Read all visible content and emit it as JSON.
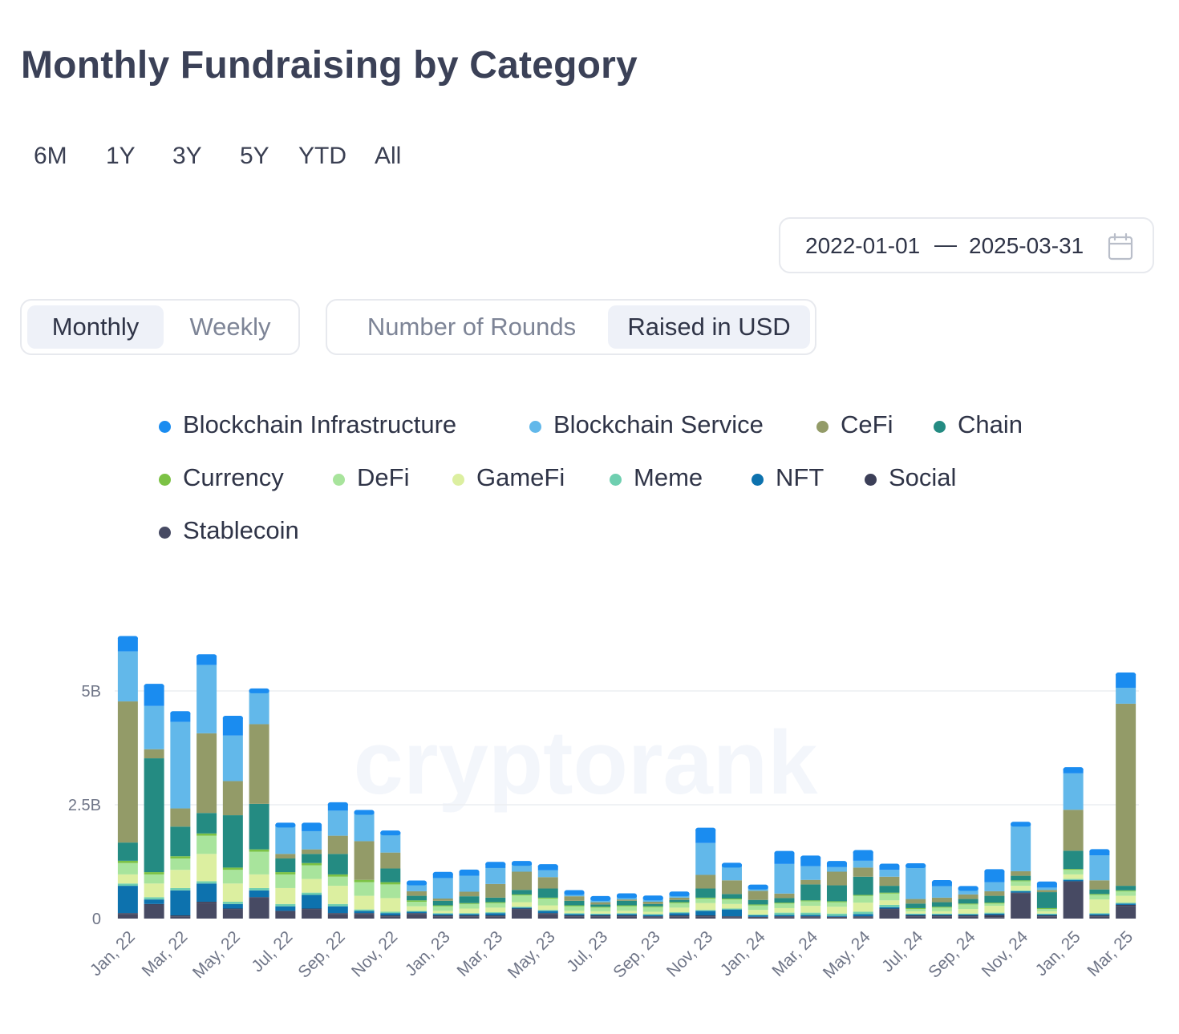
{
  "title": "Monthly Fundraising by Category",
  "ranges": [
    "6M",
    "1Y",
    "3Y",
    "5Y",
    "YTD",
    "All"
  ],
  "date_range": {
    "start": "2022-01-01",
    "separator": "—",
    "end": "2025-03-31"
  },
  "interval_toggle": {
    "options": [
      "Monthly",
      "Weekly"
    ],
    "selected": "Monthly"
  },
  "metric_toggle": {
    "options": [
      "Number of Rounds",
      "Raised in USD"
    ],
    "selected": "Raised in USD"
  },
  "icons": {
    "date_picker": "calendar-icon"
  },
  "watermark": "cryptorank",
  "colors": {
    "Blockchain Infrastructure": "#1a8cf0",
    "Blockchain Service": "#62b8ea",
    "CeFi": "#939b68",
    "Chain": "#248b82",
    "Currency": "#7cc245",
    "DeFi": "#a8e49c",
    "GameFi": "#dcefa0",
    "Meme": "#6fcfb0",
    "NFT": "#0d72ae",
    "Social": "#3c3f58",
    "Stablecoin": "#474a63"
  },
  "chart_data": {
    "type": "bar",
    "stacked": true,
    "title": "",
    "xlabel": "",
    "ylabel": "",
    "ylim": [
      0,
      6.2
    ],
    "y_ticks": [
      {
        "value": 0,
        "label": "0"
      },
      {
        "value": 2.5,
        "label": "2.5B"
      },
      {
        "value": 5,
        "label": "5B"
      }
    ],
    "grid": true,
    "legend_position": "top",
    "categories": [
      "Jan, 22",
      "Feb, 22",
      "Mar, 22",
      "Apr, 22",
      "May, 22",
      "Jun, 22",
      "Jul, 22",
      "Aug, 22",
      "Sep, 22",
      "Oct, 22",
      "Nov, 22",
      "Dec, 22",
      "Jan, 23",
      "Feb, 23",
      "Mar, 23",
      "Apr, 23",
      "May, 23",
      "Jun, 23",
      "Jul, 23",
      "Aug, 23",
      "Sep, 23",
      "Oct, 23",
      "Nov, 23",
      "Dec, 23",
      "Jan, 24",
      "Feb, 24",
      "Mar, 24",
      "Apr, 24",
      "May, 24",
      "Jun, 24",
      "Jul, 24",
      "Aug, 24",
      "Sep, 24",
      "Oct, 24",
      "Nov, 24",
      "Dec, 24",
      "Jan, 25",
      "Feb, 25",
      "Mar, 25"
    ],
    "x_tick_labels": [
      "Jan, 22",
      "Mar, 22",
      "May, 22",
      "Jul, 22",
      "Sep, 22",
      "Nov, 22",
      "Jan, 23",
      "Mar, 23",
      "May, 23",
      "Jul, 23",
      "Sep, 23",
      "Nov, 23",
      "Jan, 24",
      "Mar, 24",
      "May, 24",
      "Jul, 24",
      "Sep, 24",
      "Nov, 24",
      "Jan, 25",
      "Mar, 25"
    ],
    "units": "USD billions",
    "series": [
      {
        "name": "Stablecoin",
        "values": [
          0.1,
          0.3,
          0.05,
          0.35,
          0.2,
          0.45,
          0.15,
          0.2,
          0.1,
          0.1,
          0.05,
          0.1,
          0.05,
          0.05,
          0.05,
          0.2,
          0.1,
          0.05,
          0.05,
          0.05,
          0.03,
          0.05,
          0.05,
          0.03,
          0.02,
          0.03,
          0.03,
          0.02,
          0.03,
          0.2,
          0.05,
          0.05,
          0.05,
          0.03,
          0.55,
          0.05,
          0.8,
          0.05,
          0.28
        ]
      },
      {
        "name": "Social",
        "values": [
          0.02,
          0.02,
          0.02,
          0.02,
          0.02,
          0.02,
          0.02,
          0.02,
          0.02,
          0.02,
          0.02,
          0.02,
          0.02,
          0.02,
          0.02,
          0.02,
          0.02,
          0.02,
          0.02,
          0.02,
          0.02,
          0.02,
          0.02,
          0.02,
          0.02,
          0.02,
          0.02,
          0.02,
          0.02,
          0.02,
          0.02,
          0.02,
          0.02,
          0.05,
          0.02,
          0.02,
          0.02,
          0.02,
          0.02
        ]
      },
      {
        "name": "NFT",
        "values": [
          0.6,
          0.1,
          0.55,
          0.4,
          0.1,
          0.15,
          0.1,
          0.3,
          0.15,
          0.05,
          0.05,
          0.03,
          0.03,
          0.03,
          0.05,
          0.02,
          0.05,
          0.03,
          0.02,
          0.03,
          0.03,
          0.05,
          0.1,
          0.15,
          0.03,
          0.03,
          0.03,
          0.02,
          0.05,
          0.03,
          0.02,
          0.02,
          0.02,
          0.03,
          0.03,
          0.02,
          0.03,
          0.03,
          0.03
        ]
      },
      {
        "name": "Meme",
        "values": [
          0.05,
          0.05,
          0.05,
          0.05,
          0.05,
          0.05,
          0.05,
          0.05,
          0.05,
          0.03,
          0.03,
          0.02,
          0.02,
          0.02,
          0.02,
          0.02,
          0.02,
          0.02,
          0.02,
          0.02,
          0.02,
          0.02,
          0.02,
          0.02,
          0.02,
          0.05,
          0.05,
          0.05,
          0.05,
          0.05,
          0.02,
          0.02,
          0.02,
          0.02,
          0.02,
          0.02,
          0.02,
          0.02,
          0.02
        ]
      },
      {
        "name": "GameFi",
        "values": [
          0.2,
          0.3,
          0.4,
          0.6,
          0.4,
          0.3,
          0.35,
          0.3,
          0.4,
          0.3,
          0.3,
          0.1,
          0.05,
          0.1,
          0.1,
          0.1,
          0.1,
          0.05,
          0.05,
          0.05,
          0.05,
          0.1,
          0.15,
          0.1,
          0.1,
          0.1,
          0.15,
          0.15,
          0.2,
          0.1,
          0.05,
          0.05,
          0.1,
          0.15,
          0.1,
          0.05,
          0.1,
          0.3,
          0.15
        ]
      },
      {
        "name": "DeFi",
        "values": [
          0.25,
          0.2,
          0.25,
          0.4,
          0.3,
          0.5,
          0.3,
          0.3,
          0.2,
          0.3,
          0.3,
          0.1,
          0.1,
          0.1,
          0.1,
          0.15,
          0.15,
          0.1,
          0.08,
          0.1,
          0.1,
          0.1,
          0.1,
          0.1,
          0.1,
          0.1,
          0.1,
          0.1,
          0.15,
          0.15,
          0.05,
          0.08,
          0.1,
          0.05,
          0.1,
          0.05,
          0.1,
          0.1,
          0.1
        ]
      },
      {
        "name": "Currency",
        "values": [
          0.05,
          0.05,
          0.05,
          0.05,
          0.05,
          0.05,
          0.05,
          0.05,
          0.05,
          0.05,
          0.05,
          0.03,
          0.02,
          0.02,
          0.02,
          0.02,
          0.02,
          0.02,
          0.02,
          0.02,
          0.02,
          0.02,
          0.02,
          0.02,
          0.02,
          0.02,
          0.02,
          0.02,
          0.02,
          0.02,
          0.02,
          0.02,
          0.02,
          0.02,
          0.02,
          0.02,
          0.02,
          0.02,
          0.02
        ]
      },
      {
        "name": "Chain",
        "values": [
          0.4,
          2.5,
          0.65,
          0.45,
          1.15,
          1.0,
          0.3,
          0.2,
          0.45,
          0.0,
          0.3,
          0.1,
          0.1,
          0.15,
          0.1,
          0.1,
          0.2,
          0.1,
          0.05,
          0.1,
          0.05,
          0.05,
          0.2,
          0.1,
          0.1,
          0.1,
          0.35,
          0.35,
          0.4,
          0.15,
          0.1,
          0.1,
          0.1,
          0.15,
          0.1,
          0.35,
          0.4,
          0.1,
          0.1
        ]
      },
      {
        "name": "CeFi",
        "values": [
          3.1,
          0.2,
          0.4,
          1.75,
          0.75,
          1.75,
          0.1,
          0.1,
          0.4,
          0.85,
          0.35,
          0.1,
          0.05,
          0.1,
          0.3,
          0.4,
          0.25,
          0.1,
          0.05,
          0.03,
          0.05,
          0.05,
          0.3,
          0.3,
          0.2,
          0.1,
          0.1,
          0.3,
          0.2,
          0.2,
          0.1,
          0.1,
          0.1,
          0.1,
          0.1,
          0.05,
          0.9,
          0.2,
          4.0
        ]
      },
      {
        "name": "Blockchain Service",
        "values": [
          1.1,
          0.95,
          1.9,
          1.5,
          1.0,
          0.7,
          0.6,
          0.4,
          0.55,
          0.6,
          0.4,
          0.15,
          0.45,
          0.35,
          0.35,
          0.15,
          0.15,
          0.05,
          0.05,
          0.05,
          0.05,
          0.05,
          0.7,
          0.3,
          0.05,
          0.65,
          0.3,
          0.1,
          0.15,
          0.15,
          0.7,
          0.25,
          0.1,
          0.2,
          1.0,
          0.05,
          0.8,
          0.55,
          0.35
        ]
      },
      {
        "name": "Blockchain Infrastructure",
        "values": [
          0.3,
          0.45,
          0.2,
          0.2,
          0.4,
          0.05,
          0.05,
          0.15,
          0.15,
          0.05,
          0.05,
          0.05,
          0.1,
          0.1,
          0.1,
          0.05,
          0.1,
          0.05,
          0.05,
          0.05,
          0.05,
          0.05,
          0.3,
          0.05,
          0.05,
          0.25,
          0.2,
          0.1,
          0.2,
          0.1,
          0.05,
          0.1,
          0.05,
          0.25,
          0.05,
          0.1,
          0.1,
          0.1,
          0.3
        ]
      }
    ]
  }
}
